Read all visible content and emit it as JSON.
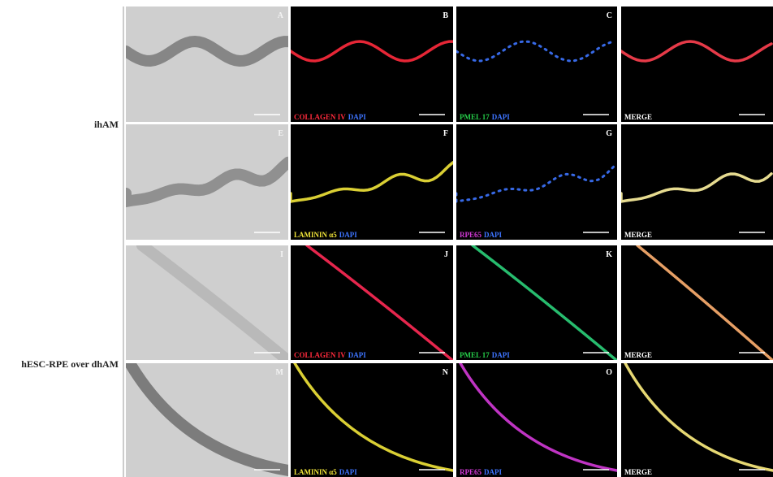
{
  "row_groups": [
    {
      "label": "ihAM"
    },
    {
      "label": "hESC-RPE over dhAM"
    }
  ],
  "panels": [
    [
      {
        "letter": "A"
      },
      {
        "letter": "B",
        "caption": [
          {
            "text": "COLLAGEN IV",
            "color": "#ff2a3c"
          },
          {
            "text": "DAPI",
            "color": "#3d74ff"
          }
        ]
      },
      {
        "letter": "C",
        "caption": [
          {
            "text": "PMEL 17",
            "color": "#26d04a"
          },
          {
            "text": "DAPI",
            "color": "#3d74ff"
          }
        ]
      },
      {
        "caption": [
          {
            "text": "MERGE",
            "color": "#ffffff"
          }
        ]
      }
    ],
    [
      {
        "letter": "E"
      },
      {
        "letter": "F",
        "caption": [
          {
            "text": "LAMININ α5",
            "color": "#f2e63a"
          },
          {
            "text": "DAPI",
            "color": "#3d74ff"
          }
        ]
      },
      {
        "letter": "G",
        "caption": [
          {
            "text": "RPE65",
            "color": "#d43ad8"
          },
          {
            "text": "DAPI",
            "color": "#3d74ff"
          }
        ]
      },
      {
        "caption": [
          {
            "text": "MERGE",
            "color": "#ffffff"
          }
        ]
      }
    ],
    [
      {
        "letter": "I"
      },
      {
        "letter": "J",
        "caption": [
          {
            "text": "COLLAGEN IV",
            "color": "#ff2a3c"
          },
          {
            "text": "DAPI",
            "color": "#3d74ff"
          }
        ]
      },
      {
        "letter": "K",
        "caption": [
          {
            "text": "PMEL 17",
            "color": "#26d04a"
          },
          {
            "text": "DAPI",
            "color": "#3d74ff"
          }
        ]
      },
      {
        "caption": [
          {
            "text": "MERGE",
            "color": "#ffffff"
          }
        ]
      }
    ],
    [
      {
        "letter": "M"
      },
      {
        "letter": "N",
        "caption": [
          {
            "text": "LAMININ α5",
            "color": "#f2e63a"
          },
          {
            "text": "DAPI",
            "color": "#3d74ff"
          }
        ]
      },
      {
        "letter": "O",
        "caption": [
          {
            "text": "RPE65",
            "color": "#d43ad8"
          },
          {
            "text": "DAPI",
            "color": "#3d74ff"
          }
        ]
      },
      {
        "caption": [
          {
            "text": "MERGE",
            "color": "#ffffff"
          }
        ]
      }
    ]
  ]
}
